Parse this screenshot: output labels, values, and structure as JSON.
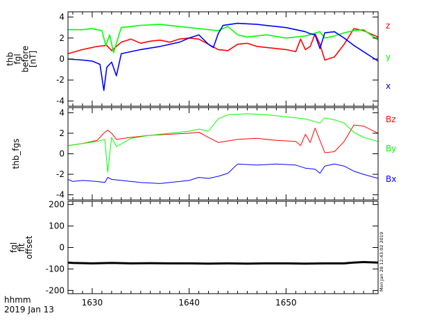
{
  "footer": {
    "line1": "hhmm",
    "line2": "2019 Jan 13",
    "stamp": "Mon Jan 28 12:43:02 2019"
  },
  "colors": {
    "red": "#ff0000",
    "green": "#00ff00",
    "blue": "#0000ff",
    "black": "#000000"
  },
  "chart_data": [
    {
      "type": "line",
      "ylabel_lines": [
        "thb",
        "fgl",
        "before",
        "[nT]"
      ],
      "ylim": [
        -4.5,
        4.5
      ],
      "yticks": [
        4,
        2,
        0,
        -2,
        -4
      ],
      "xlim": [
        1627.5,
        1659.5
      ],
      "xticks": [
        1630,
        1640,
        1650
      ],
      "series": [
        {
          "name": "z",
          "color": "#ff0000",
          "stroke_width": 1.6,
          "x": [
            1627.5,
            1629,
            1630.5,
            1631.5,
            1632,
            1633,
            1634,
            1635,
            1636,
            1637,
            1638,
            1639,
            1640,
            1641,
            1642,
            1643,
            1644,
            1645,
            1646,
            1647,
            1648,
            1649,
            1650,
            1651,
            1651.5,
            1652,
            1652.5,
            1653,
            1653.5,
            1654,
            1655,
            1656,
            1657,
            1658,
            1659.5
          ],
          "y": [
            0.5,
            0.9,
            1.2,
            1.3,
            0.8,
            1.6,
            1.9,
            1.5,
            1.7,
            1.8,
            1.6,
            1.9,
            2.0,
            1.9,
            1.4,
            0.9,
            0.8,
            1.4,
            1.5,
            1.2,
            1.1,
            1.0,
            0.9,
            0.7,
            1.9,
            0.9,
            1.2,
            2.4,
            1.4,
            -0.1,
            0.2,
            1.4,
            2.9,
            2.7,
            2.1
          ]
        },
        {
          "name": "y",
          "color": "#00ff00",
          "stroke_width": 1.6,
          "x": [
            1627.5,
            1629,
            1630,
            1631,
            1631.4,
            1631.8,
            1632.2,
            1633,
            1635,
            1637,
            1639,
            1641,
            1643,
            1644,
            1645,
            1646,
            1648,
            1650,
            1652,
            1653.5,
            1654,
            1655,
            1656,
            1657,
            1658,
            1659.5
          ],
          "y": [
            2.8,
            2.8,
            2.9,
            2.7,
            1.3,
            2.3,
            0.6,
            3.0,
            3.2,
            3.3,
            3.1,
            2.9,
            2.7,
            3.1,
            2.3,
            2.1,
            2.3,
            2.0,
            2.2,
            2.6,
            2.0,
            2.2,
            2.5,
            2.7,
            2.8,
            1.8
          ]
        },
        {
          "name": "x",
          "color": "#0000ff",
          "stroke_width": 1.6,
          "x": [
            1627.5,
            1629,
            1630,
            1630.8,
            1631.2,
            1631.5,
            1632,
            1632.5,
            1633,
            1635,
            1637,
            1639,
            1640,
            1641,
            1642,
            1642.5,
            1643,
            1643.5,
            1645,
            1647,
            1649,
            1650,
            1651,
            1652,
            1652.5,
            1653,
            1653.5,
            1654,
            1655,
            1656,
            1657,
            1658,
            1659.5
          ],
          "y": [
            0.0,
            -0.1,
            -0.2,
            -0.5,
            -3.0,
            -0.8,
            -0.3,
            -1.6,
            0.5,
            0.9,
            1.2,
            1.6,
            2.0,
            2.3,
            1.4,
            1.1,
            2.4,
            3.2,
            3.4,
            3.3,
            3.1,
            3.0,
            2.8,
            2.6,
            2.4,
            2.3,
            1.0,
            2.5,
            2.6,
            2.0,
            1.3,
            0.7,
            -0.2
          ]
        }
      ],
      "legend": [
        {
          "label": "z",
          "color": "#ff0000"
        },
        {
          "label": "y",
          "color": "#00ff00"
        },
        {
          "label": "x",
          "color": "#0000ff"
        }
      ]
    },
    {
      "type": "line",
      "ylabel_lines": [
        "thb_fgs"
      ],
      "ylim": [
        -4.5,
        4.5
      ],
      "yticks": [
        4,
        2,
        0,
        -2,
        -4
      ],
      "xlim": [
        1627.5,
        1659.5
      ],
      "xticks": [
        1630,
        1640,
        1650
      ],
      "series": [
        {
          "name": "Bz",
          "color": "#ff0000",
          "stroke_width": 1.0,
          "x": [
            1627.5,
            1629,
            1630.5,
            1631.2,
            1631.6,
            1632,
            1632.5,
            1634,
            1636,
            1638,
            1640,
            1641,
            1642,
            1643,
            1645,
            1647,
            1649,
            1651,
            1651.5,
            1652,
            1652.5,
            1653,
            1653.5,
            1654,
            1655,
            1656,
            1657,
            1658,
            1659.5
          ],
          "y": [
            0.8,
            1.0,
            1.3,
            2.0,
            2.3,
            2.0,
            1.4,
            1.6,
            1.8,
            1.9,
            2.0,
            2.1,
            1.6,
            1.1,
            1.4,
            1.5,
            1.3,
            1.2,
            0.8,
            1.9,
            1.1,
            2.5,
            1.3,
            0.1,
            0.2,
            1.2,
            2.8,
            2.7,
            2.0
          ]
        },
        {
          "name": "By",
          "color": "#00ff00",
          "stroke_width": 1.0,
          "x": [
            1627.5,
            1629,
            1630.5,
            1631.3,
            1631.6,
            1632,
            1632.5,
            1634,
            1636,
            1638,
            1640,
            1641,
            1642,
            1643,
            1644,
            1646,
            1648,
            1650,
            1652,
            1653.5,
            1654,
            1655,
            1656,
            1657,
            1658,
            1659.5
          ],
          "y": [
            0.8,
            1.0,
            1.2,
            1.4,
            -1.8,
            1.6,
            0.7,
            1.5,
            1.8,
            2.0,
            2.2,
            2.4,
            2.2,
            3.4,
            3.8,
            3.9,
            3.8,
            3.6,
            3.4,
            3.0,
            3.5,
            3.3,
            3.0,
            2.1,
            1.6,
            1.2
          ]
        },
        {
          "name": "Bx",
          "color": "#0000ff",
          "stroke_width": 1.0,
          "x": [
            1627.5,
            1628,
            1629,
            1630.5,
            1631.3,
            1631.6,
            1632,
            1633,
            1635,
            1637,
            1639,
            1640,
            1641,
            1642,
            1643,
            1644,
            1645,
            1647,
            1649,
            1651,
            1652,
            1653,
            1653.5,
            1654,
            1655,
            1656,
            1657,
            1658,
            1659.5
          ],
          "y": [
            -2.5,
            -2.7,
            -2.6,
            -2.7,
            -2.8,
            -2.3,
            -2.5,
            -2.6,
            -2.8,
            -2.9,
            -2.7,
            -2.6,
            -2.3,
            -2.4,
            -2.2,
            -1.9,
            -1.0,
            -1.1,
            -1.0,
            -1.1,
            -1.4,
            -1.5,
            -1.9,
            -1.2,
            -1.0,
            -1.2,
            -1.7,
            -2.0,
            -2.4
          ]
        }
      ],
      "legend": [
        {
          "label": "Bz",
          "color": "#ff0000"
        },
        {
          "label": "By",
          "color": "#00ff00"
        },
        {
          "label": "Bx",
          "color": "#0000ff"
        }
      ]
    },
    {
      "type": "line",
      "ylabel_lines": [
        "fgl",
        "fit",
        "offset"
      ],
      "ylim": [
        -215,
        215
      ],
      "yticks": [
        200,
        100,
        0,
        -100,
        -200
      ],
      "xlim": [
        1627.5,
        1659.5
      ],
      "xticks": [
        1630,
        1640,
        1650
      ],
      "series": [
        {
          "name": "offset",
          "color": "#000000",
          "stroke_width": 3.0,
          "x": [
            1627.5,
            1628,
            1630,
            1632,
            1634,
            1636,
            1638,
            1640,
            1642,
            1644,
            1646,
            1648,
            1650,
            1652,
            1654,
            1656,
            1657,
            1658,
            1659.5
          ],
          "y": [
            -70,
            -72,
            -74,
            -72,
            -74,
            -73,
            -74,
            -74,
            -75,
            -74,
            -75,
            -74,
            -74,
            -75,
            -74,
            -74,
            -70,
            -68,
            -70
          ]
        }
      ],
      "legend": []
    }
  ]
}
